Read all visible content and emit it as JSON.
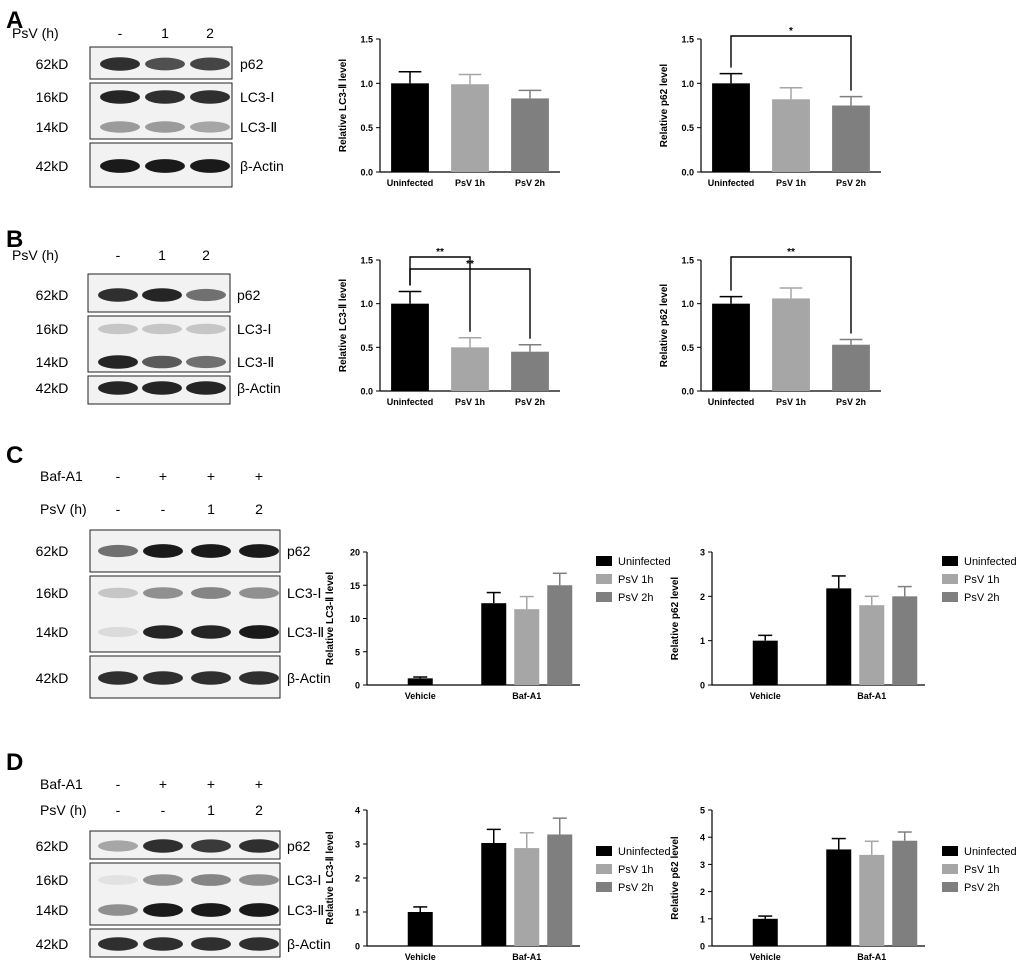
{
  "panels": [
    {
      "letter": "A",
      "blot": {
        "rows": [
          {
            "label": "PsV (h)",
            "values": [
              "-",
              "1",
              "2"
            ]
          }
        ],
        "bands": [
          {
            "mw": "62kD",
            "name": "p62"
          },
          {
            "mw": "16kD",
            "name": "LC3-Ⅰ"
          },
          {
            "mw": "14kD",
            "name": "LC3-Ⅱ"
          },
          {
            "mw": "42kD",
            "name": "β-Actin"
          }
        ]
      }
    },
    {
      "letter": "B",
      "blot": {
        "rows": [
          {
            "label": "PsV (h)",
            "values": [
              "-",
              "1",
              "2"
            ]
          }
        ],
        "bands": [
          {
            "mw": "62kD",
            "name": "p62"
          },
          {
            "mw": "16kD",
            "name": "LC3-Ⅰ"
          },
          {
            "mw": "14kD",
            "name": "LC3-Ⅱ"
          },
          {
            "mw": "42kD",
            "name": "β-Actin"
          }
        ]
      }
    },
    {
      "letter": "C",
      "blot": {
        "rows": [
          {
            "label": "Baf-A1",
            "values": [
              "-",
              "+",
              "+",
              "+"
            ]
          },
          {
            "label": "PsV (h)",
            "values": [
              "-",
              "-",
              "1",
              "2"
            ]
          }
        ],
        "bands": [
          {
            "mw": "62kD",
            "name": "p62"
          },
          {
            "mw": "16kD",
            "name": "LC3-Ⅰ"
          },
          {
            "mw": "14kD",
            "name": "LC3-Ⅱ"
          },
          {
            "mw": "42kD",
            "name": "β-Actin"
          }
        ]
      }
    },
    {
      "letter": "D",
      "blot": {
        "rows": [
          {
            "label": "Baf-A1",
            "values": [
              "-",
              "+",
              "+",
              "+"
            ]
          },
          {
            "label": "PsV (h)",
            "values": [
              "-",
              "-",
              "1",
              "2"
            ]
          }
        ],
        "bands": [
          {
            "mw": "62kD",
            "name": "p62"
          },
          {
            "mw": "16kD",
            "name": "LC3-Ⅰ"
          },
          {
            "mw": "14kD",
            "name": "LC3-Ⅱ"
          },
          {
            "mw": "42kD",
            "name": "β-Actin"
          }
        ]
      }
    }
  ],
  "colors": {
    "uninfected": "#000000",
    "psv1h": "#a6a6a6",
    "psv2h": "#7f7f7f"
  },
  "chart_data": [
    {
      "panel": "A",
      "type": "bar",
      "ylabel": "Relative LC3-Ⅱ level",
      "categories": [
        "Uninfected",
        "PsV 1h",
        "PsV 2h"
      ],
      "values": [
        1.0,
        0.99,
        0.83
      ],
      "errors": [
        0.13,
        0.11,
        0.09
      ],
      "ylim": [
        0,
        1.5
      ],
      "yticks": [
        "0.0",
        "0.5",
        "1.0",
        "1.5"
      ],
      "significance": []
    },
    {
      "panel": "A",
      "type": "bar",
      "ylabel": "Relative p62 level",
      "categories": [
        "Uninfected",
        "PsV 1h",
        "PsV 2h"
      ],
      "values": [
        1.0,
        0.82,
        0.75
      ],
      "errors": [
        0.11,
        0.13,
        0.1
      ],
      "ylim": [
        0,
        1.5
      ],
      "yticks": [
        "0.0",
        "0.5",
        "1.0",
        "1.5"
      ],
      "significance": [
        {
          "from": 0,
          "to": 2,
          "label": "*"
        }
      ]
    },
    {
      "panel": "B",
      "type": "bar",
      "ylabel": "Relative LC3-Ⅱ level",
      "categories": [
        "Uninfected",
        "PsV 1h",
        "PsV 2h"
      ],
      "values": [
        1.0,
        0.5,
        0.45
      ],
      "errors": [
        0.14,
        0.11,
        0.08
      ],
      "ylim": [
        0,
        1.5
      ],
      "yticks": [
        "0.0",
        "0.5",
        "1.0",
        "1.5"
      ],
      "significance": [
        {
          "from": 0,
          "to": 1,
          "label": "**"
        },
        {
          "from": 0,
          "to": 2,
          "label": "**"
        }
      ]
    },
    {
      "panel": "B",
      "type": "bar",
      "ylabel": "Relative p62 level",
      "categories": [
        "Uninfected",
        "PsV 1h",
        "PsV 2h"
      ],
      "values": [
        1.0,
        1.06,
        0.53
      ],
      "errors": [
        0.08,
        0.12,
        0.06
      ],
      "ylim": [
        0,
        1.5
      ],
      "yticks": [
        "0.0",
        "0.5",
        "1.0",
        "1.5"
      ],
      "significance": [
        {
          "from": 0,
          "to": 2,
          "label": "**"
        }
      ]
    },
    {
      "panel": "C",
      "type": "grouped-bar",
      "ylabel": "Relative LC3-Ⅱ level",
      "groups": [
        "Vehicle",
        "Baf-A1"
      ],
      "series": [
        {
          "name": "Uninfected",
          "values": [
            1.0,
            12.3
          ],
          "errors": [
            0.2,
            1.6
          ]
        },
        {
          "name": "PsV 1h",
          "values": [
            null,
            11.4
          ],
          "errors": [
            null,
            1.9
          ]
        },
        {
          "name": "PsV 2h",
          "values": [
            null,
            15.0
          ],
          "errors": [
            null,
            1.8
          ]
        }
      ],
      "ylim": [
        0,
        20
      ],
      "yticks": [
        "0",
        "5",
        "10",
        "15",
        "20"
      ],
      "legend": "right"
    },
    {
      "panel": "C",
      "type": "grouped-bar",
      "ylabel": "Relative p62 level",
      "groups": [
        "Vehicle",
        "Baf-A1"
      ],
      "series": [
        {
          "name": "Uninfected",
          "values": [
            1.0,
            2.18
          ],
          "errors": [
            0.12,
            0.28
          ]
        },
        {
          "name": "PsV 1h",
          "values": [
            null,
            1.8
          ],
          "errors": [
            null,
            0.2
          ]
        },
        {
          "name": "PsV 2h",
          "values": [
            null,
            2.0
          ],
          "errors": [
            null,
            0.22
          ]
        }
      ],
      "ylim": [
        0,
        3
      ],
      "yticks": [
        "0",
        "1",
        "2",
        "3"
      ],
      "legend": "right"
    },
    {
      "panel": "D",
      "type": "grouped-bar",
      "ylabel": "Relative LC3-Ⅱ level",
      "groups": [
        "Vehicle",
        "Baf-A1"
      ],
      "series": [
        {
          "name": "Uninfected",
          "values": [
            1.0,
            3.03
          ],
          "errors": [
            0.15,
            0.4
          ]
        },
        {
          "name": "PsV 1h",
          "values": [
            null,
            2.88
          ],
          "errors": [
            null,
            0.45
          ]
        },
        {
          "name": "PsV 2h",
          "values": [
            null,
            3.28
          ],
          "errors": [
            null,
            0.48
          ]
        }
      ],
      "ylim": [
        0,
        4
      ],
      "yticks": [
        "0",
        "1",
        "2",
        "3",
        "4"
      ],
      "legend": "right"
    },
    {
      "panel": "D",
      "type": "grouped-bar",
      "ylabel": "Relative p62 level",
      "groups": [
        "Vehicle",
        "Baf-A1"
      ],
      "series": [
        {
          "name": "Uninfected",
          "values": [
            1.0,
            3.55
          ],
          "errors": [
            0.1,
            0.4
          ]
        },
        {
          "name": "PsV 1h",
          "values": [
            null,
            3.35
          ],
          "errors": [
            null,
            0.5
          ]
        },
        {
          "name": "PsV 2h",
          "values": [
            null,
            3.87
          ],
          "errors": [
            null,
            0.32
          ]
        }
      ],
      "ylim": [
        0,
        5
      ],
      "yticks": [
        "0",
        "1",
        "2",
        "3",
        "4",
        "5"
      ],
      "legend": "right"
    }
  ]
}
